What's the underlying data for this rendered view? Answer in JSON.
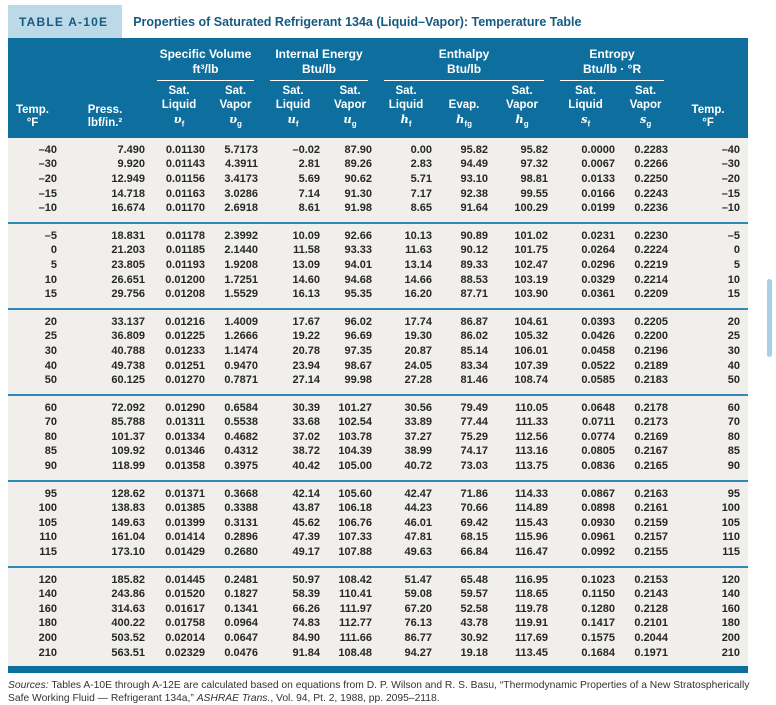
{
  "colors": {
    "header_teal": "#0e6e9e",
    "title_blue": "#155a80",
    "badge_bg": "#bcd9e8",
    "body_bg": "#f1efec",
    "separator_blue": "#2e89b9",
    "scroll_thumb": "#a9cfe4"
  },
  "header": {
    "table_label": "TABLE A-10E",
    "title": "Properties of Saturated Refrigerant 134a (Liquid–Vapor): Temperature Table"
  },
  "table": {
    "groups": [
      {
        "line1": "Specific Volume",
        "line2": "ft³/lb"
      },
      {
        "line1": "Internal Energy",
        "line2": "Btu/lb"
      },
      {
        "line1": "Enthalpy",
        "line2": "Btu/lb"
      },
      {
        "line1": "Entropy",
        "line2": "Btu/lb · °R"
      }
    ],
    "columns": [
      {
        "key": "temp-f-left",
        "lines": [
          "Temp.",
          "°F"
        ]
      },
      {
        "key": "press",
        "lines": [
          "Press.",
          "lbf/in.²"
        ]
      },
      {
        "key": "v-f",
        "lines": [
          "Sat.",
          "Liquid"
        ],
        "sym": "υ",
        "sub": "f"
      },
      {
        "key": "v-g",
        "lines": [
          "Sat.",
          "Vapor"
        ],
        "sym": "υ",
        "sub": "g"
      },
      {
        "key": "u-f",
        "lines": [
          "Sat.",
          "Liquid"
        ],
        "sym": "u",
        "sub": "f"
      },
      {
        "key": "u-g",
        "lines": [
          "Sat.",
          "Vapor"
        ],
        "sym": "u",
        "sub": "g"
      },
      {
        "key": "h-f",
        "lines": [
          "Sat.",
          "Liquid"
        ],
        "sym": "h",
        "sub": "f"
      },
      {
        "key": "h-fg",
        "lines": [
          "Evap."
        ],
        "sym": "h",
        "sub": "fg"
      },
      {
        "key": "h-g",
        "lines": [
          "Sat.",
          "Vapor"
        ],
        "sym": "h",
        "sub": "g"
      },
      {
        "key": "s-f",
        "lines": [
          "Sat.",
          "Liquid"
        ],
        "sym": "s",
        "sub": "f"
      },
      {
        "key": "s-g",
        "lines": [
          "Sat.",
          "Vapor"
        ],
        "sym": "s",
        "sub": "g"
      },
      {
        "key": "temp-f-right",
        "lines": [
          "Temp.",
          "°F"
        ]
      }
    ],
    "row_groups": [
      [
        [
          "–40",
          "7.490",
          "0.01130",
          "5.7173",
          "–0.02",
          "87.90",
          "0.00",
          "95.82",
          "95.82",
          "0.0000",
          "0.2283",
          "–40"
        ],
        [
          "–30",
          "9.920",
          "0.01143",
          "4.3911",
          "2.81",
          "89.26",
          "2.83",
          "94.49",
          "97.32",
          "0.0067",
          "0.2266",
          "–30"
        ],
        [
          "–20",
          "12.949",
          "0.01156",
          "3.4173",
          "5.69",
          "90.62",
          "5.71",
          "93.10",
          "98.81",
          "0.0133",
          "0.2250",
          "–20"
        ],
        [
          "–15",
          "14.718",
          "0.01163",
          "3.0286",
          "7.14",
          "91.30",
          "7.17",
          "92.38",
          "99.55",
          "0.0166",
          "0.2243",
          "–15"
        ],
        [
          "–10",
          "16.674",
          "0.01170",
          "2.6918",
          "8.61",
          "91.98",
          "8.65",
          "91.64",
          "100.29",
          "0.0199",
          "0.2236",
          "–10"
        ]
      ],
      [
        [
          "–5",
          "18.831",
          "0.01178",
          "2.3992",
          "10.09",
          "92.66",
          "10.13",
          "90.89",
          "101.02",
          "0.0231",
          "0.2230",
          "–5"
        ],
        [
          "0",
          "21.203",
          "0.01185",
          "2.1440",
          "11.58",
          "93.33",
          "11.63",
          "90.12",
          "101.75",
          "0.0264",
          "0.2224",
          "0"
        ],
        [
          "5",
          "23.805",
          "0.01193",
          "1.9208",
          "13.09",
          "94.01",
          "13.14",
          "89.33",
          "102.47",
          "0.0296",
          "0.2219",
          "5"
        ],
        [
          "10",
          "26.651",
          "0.01200",
          "1.7251",
          "14.60",
          "94.68",
          "14.66",
          "88.53",
          "103.19",
          "0.0329",
          "0.2214",
          "10"
        ],
        [
          "15",
          "29.756",
          "0.01208",
          "1.5529",
          "16.13",
          "95.35",
          "16.20",
          "87.71",
          "103.90",
          "0.0361",
          "0.2209",
          "15"
        ]
      ],
      [
        [
          "20",
          "33.137",
          "0.01216",
          "1.4009",
          "17.67",
          "96.02",
          "17.74",
          "86.87",
          "104.61",
          "0.0393",
          "0.2205",
          "20"
        ],
        [
          "25",
          "36.809",
          "0.01225",
          "1.2666",
          "19.22",
          "96.69",
          "19.30",
          "86.02",
          "105.32",
          "0.0426",
          "0.2200",
          "25"
        ],
        [
          "30",
          "40.788",
          "0.01233",
          "1.1474",
          "20.78",
          "97.35",
          "20.87",
          "85.14",
          "106.01",
          "0.0458",
          "0.2196",
          "30"
        ],
        [
          "40",
          "49.738",
          "0.01251",
          "0.9470",
          "23.94",
          "98.67",
          "24.05",
          "83.34",
          "107.39",
          "0.0522",
          "0.2189",
          "40"
        ],
        [
          "50",
          "60.125",
          "0.01270",
          "0.7871",
          "27.14",
          "99.98",
          "27.28",
          "81.46",
          "108.74",
          "0.0585",
          "0.2183",
          "50"
        ]
      ],
      [
        [
          "60",
          "72.092",
          "0.01290",
          "0.6584",
          "30.39",
          "101.27",
          "30.56",
          "79.49",
          "110.05",
          "0.0648",
          "0.2178",
          "60"
        ],
        [
          "70",
          "85.788",
          "0.01311",
          "0.5538",
          "33.68",
          "102.54",
          "33.89",
          "77.44",
          "111.33",
          "0.0711",
          "0.2173",
          "70"
        ],
        [
          "80",
          "101.37",
          "0.01334",
          "0.4682",
          "37.02",
          "103.78",
          "37.27",
          "75.29",
          "112.56",
          "0.0774",
          "0.2169",
          "80"
        ],
        [
          "85",
          "109.92",
          "0.01346",
          "0.4312",
          "38.72",
          "104.39",
          "38.99",
          "74.17",
          "113.16",
          "0.0805",
          "0.2167",
          "85"
        ],
        [
          "90",
          "118.99",
          "0.01358",
          "0.3975",
          "40.42",
          "105.00",
          "40.72",
          "73.03",
          "113.75",
          "0.0836",
          "0.2165",
          "90"
        ]
      ],
      [
        [
          "95",
          "128.62",
          "0.01371",
          "0.3668",
          "42.14",
          "105.60",
          "42.47",
          "71.86",
          "114.33",
          "0.0867",
          "0.2163",
          "95"
        ],
        [
          "100",
          "138.83",
          "0.01385",
          "0.3388",
          "43.87",
          "106.18",
          "44.23",
          "70.66",
          "114.89",
          "0.0898",
          "0.2161",
          "100"
        ],
        [
          "105",
          "149.63",
          "0.01399",
          "0.3131",
          "45.62",
          "106.76",
          "46.01",
          "69.42",
          "115.43",
          "0.0930",
          "0.2159",
          "105"
        ],
        [
          "110",
          "161.04",
          "0.01414",
          "0.2896",
          "47.39",
          "107.33",
          "47.81",
          "68.15",
          "115.96",
          "0.0961",
          "0.2157",
          "110"
        ],
        [
          "115",
          "173.10",
          "0.01429",
          "0.2680",
          "49.17",
          "107.88",
          "49.63",
          "66.84",
          "116.47",
          "0.0992",
          "0.2155",
          "115"
        ]
      ],
      [
        [
          "120",
          "185.82",
          "0.01445",
          "0.2481",
          "50.97",
          "108.42",
          "51.47",
          "65.48",
          "116.95",
          "0.1023",
          "0.2153",
          "120"
        ],
        [
          "140",
          "243.86",
          "0.01520",
          "0.1827",
          "58.39",
          "110.41",
          "59.08",
          "59.57",
          "118.65",
          "0.1150",
          "0.2143",
          "140"
        ],
        [
          "160",
          "314.63",
          "0.01617",
          "0.1341",
          "66.26",
          "111.97",
          "67.20",
          "52.58",
          "119.78",
          "0.1280",
          "0.2128",
          "160"
        ],
        [
          "180",
          "400.22",
          "0.01758",
          "0.0964",
          "74.83",
          "112.77",
          "76.13",
          "43.78",
          "119.91",
          "0.1417",
          "0.2101",
          "180"
        ],
        [
          "200",
          "503.52",
          "0.02014",
          "0.0647",
          "84.90",
          "111.66",
          "86.77",
          "30.92",
          "117.69",
          "0.1575",
          "0.2044",
          "200"
        ],
        [
          "210",
          "563.51",
          "0.02329",
          "0.0476",
          "91.84",
          "108.48",
          "94.27",
          "19.18",
          "113.45",
          "0.1684",
          "0.1971",
          "210"
        ]
      ]
    ]
  },
  "footer": {
    "label": "Sources:",
    "text1": " Tables A-10E through A-12E are calculated based on equations from D. P. Wilson and R. S. Basu, “Thermodynamic Properties of a New Stratospherically Safe Working Fluid — Refrigerant 134a,” ",
    "italic": "ASHRAE Trans.",
    "text2": ", Vol. 94, Pt. 2, 1988, pp. 2095–2118."
  }
}
